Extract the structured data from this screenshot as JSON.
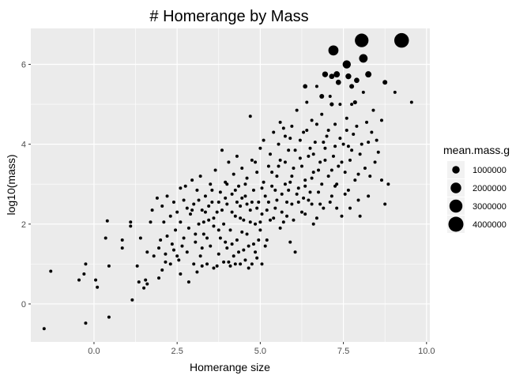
{
  "chart_data": {
    "type": "scatter",
    "title": "# Homerange by Mass",
    "xlabel": "Homerange size",
    "ylabel": "log10(mass)",
    "xlim": [
      -1.9,
      10.1
    ],
    "ylim": [
      -0.95,
      6.9
    ],
    "x_ticks": [
      0.0,
      2.5,
      5.0,
      7.5,
      10.0
    ],
    "x_tick_labels": [
      "0.0",
      "2.5",
      "5.0",
      "7.5",
      "10.0"
    ],
    "y_ticks": [
      0,
      2,
      4,
      6
    ],
    "y_tick_labels": [
      "0",
      "2",
      "4",
      "6"
    ],
    "grid": true,
    "background": "#ebebeb",
    "grid_color": "#ffffff",
    "point_color": "#000000",
    "legend": {
      "title": "mean.mass.g",
      "placement": "right",
      "entries": [
        {
          "label": "1000000",
          "value": 1000000
        },
        {
          "label": "2000000",
          "value": 2000000
        },
        {
          "label": "3000000",
          "value": 3000000
        },
        {
          "label": "4000000",
          "value": 4000000
        }
      ]
    },
    "points": [
      [
        -1.5,
        -0.62
      ],
      [
        -1.3,
        0.82
      ],
      [
        -0.45,
        0.6
      ],
      [
        -0.25,
        1.0
      ],
      [
        -0.3,
        0.75
      ],
      [
        -0.25,
        -0.48
      ],
      [
        0.05,
        0.6
      ],
      [
        0.1,
        0.42
      ],
      [
        0.35,
        1.65
      ],
      [
        0.4,
        2.08
      ],
      [
        0.45,
        0.95
      ],
      [
        0.45,
        -0.33
      ],
      [
        0.85,
        1.6
      ],
      [
        0.85,
        1.4
      ],
      [
        1.1,
        2.05
      ],
      [
        1.1,
        1.95
      ],
      [
        1.15,
        0.1
      ],
      [
        1.3,
        0.95
      ],
      [
        1.35,
        0.55
      ],
      [
        1.4,
        1.65
      ],
      [
        1.5,
        0.4
      ],
      [
        1.55,
        0.6
      ],
      [
        1.6,
        0.5
      ],
      [
        1.6,
        1.3
      ],
      [
        1.7,
        2.05
      ],
      [
        1.75,
        2.35
      ],
      [
        1.8,
        1.2
      ],
      [
        1.9,
        2.65
      ],
      [
        1.95,
        0.65
      ],
      [
        2.0,
        1.6
      ],
      [
        2.05,
        2.45
      ],
      [
        2.05,
        0.85
      ],
      [
        2.1,
        2.05
      ],
      [
        2.15,
        1.05
      ],
      [
        2.2,
        1.7
      ],
      [
        2.2,
        2.7
      ],
      [
        2.3,
        1.0
      ],
      [
        2.3,
        2.2
      ],
      [
        2.35,
        1.5
      ],
      [
        2.4,
        2.55
      ],
      [
        2.45,
        1.85
      ],
      [
        2.5,
        1.2
      ],
      [
        2.5,
        2.3
      ],
      [
        2.6,
        2.9
      ],
      [
        2.6,
        0.75
      ],
      [
        2.7,
        1.65
      ],
      [
        2.7,
        2.6
      ],
      [
        2.75,
        2.95
      ],
      [
        2.8,
        1.3
      ],
      [
        2.85,
        0.55
      ],
      [
        2.85,
        1.9
      ],
      [
        2.9,
        2.25
      ],
      [
        2.95,
        3.1
      ],
      [
        3.0,
        1.0
      ],
      [
        3.0,
        2.5
      ],
      [
        3.05,
        1.55
      ],
      [
        3.1,
        2.85
      ],
      [
        3.15,
        2.0
      ],
      [
        3.2,
        1.2
      ],
      [
        3.2,
        3.2
      ],
      [
        3.25,
        2.35
      ],
      [
        3.3,
        1.75
      ],
      [
        3.35,
        2.7
      ],
      [
        3.4,
        1.0
      ],
      [
        3.45,
        2.1
      ],
      [
        3.5,
        3.0
      ],
      [
        3.5,
        1.45
      ],
      [
        3.55,
        2.55
      ],
      [
        3.6,
        1.95
      ],
      [
        3.6,
        0.9
      ],
      [
        3.65,
        3.35
      ],
      [
        3.7,
        2.3
      ],
      [
        3.75,
        1.25
      ],
      [
        3.8,
        2.8
      ],
      [
        3.8,
        1.65
      ],
      [
        3.85,
        3.85
      ],
      [
        3.9,
        2.0
      ],
      [
        3.9,
        1.05
      ],
      [
        3.95,
        3.05
      ],
      [
        4.0,
        2.5
      ],
      [
        4.0,
        1.4
      ],
      [
        4.05,
        3.55
      ],
      [
        4.1,
        1.85
      ],
      [
        4.1,
        0.95
      ],
      [
        4.15,
        2.75
      ],
      [
        4.2,
        3.25
      ],
      [
        4.2,
        1.2
      ],
      [
        4.25,
        2.2
      ],
      [
        4.3,
        1.6
      ],
      [
        4.3,
        3.7
      ],
      [
        4.35,
        2.95
      ],
      [
        4.4,
        1.0
      ],
      [
        4.4,
        2.45
      ],
      [
        4.45,
        3.4
      ],
      [
        4.5,
        1.35
      ],
      [
        4.5,
        2.1
      ],
      [
        4.55,
        2.7
      ],
      [
        4.6,
        1.75
      ],
      [
        4.6,
        3.15
      ],
      [
        4.65,
        0.9
      ],
      [
        4.7,
        2.35
      ],
      [
        4.7,
        4.7
      ],
      [
        4.75,
        3.6
      ],
      [
        4.8,
        1.5
      ],
      [
        4.8,
        2.85
      ],
      [
        4.85,
        2.0
      ],
      [
        4.9,
        3.3
      ],
      [
        4.9,
        1.15
      ],
      [
        4.95,
        2.55
      ],
      [
        5.0,
        3.9
      ],
      [
        5.0,
        1.85
      ],
      [
        5.05,
        2.25
      ],
      [
        5.1,
        3.05
      ],
      [
        5.1,
        4.1
      ],
      [
        5.15,
        2.7
      ],
      [
        5.2,
        1.6
      ],
      [
        5.25,
        3.45
      ],
      [
        5.3,
        2.1
      ],
      [
        5.3,
        3.75
      ],
      [
        5.35,
        2.95
      ],
      [
        5.4,
        4.3
      ],
      [
        5.45,
        2.4
      ],
      [
        5.5,
        3.2
      ],
      [
        5.55,
        4.0
      ],
      [
        5.6,
        1.9
      ],
      [
        5.6,
        3.6
      ],
      [
        5.65,
        2.75
      ],
      [
        5.7,
        4.4
      ],
      [
        5.75,
        3.0
      ],
      [
        5.8,
        2.2
      ],
      [
        5.85,
        3.85
      ],
      [
        5.9,
        1.55
      ],
      [
        5.9,
        4.15
      ],
      [
        5.95,
        2.5
      ],
      [
        6.0,
        3.4
      ],
      [
        6.05,
        1.3
      ],
      [
        6.1,
        4.85
      ],
      [
        6.15,
        2.9
      ],
      [
        6.2,
        3.65
      ],
      [
        6.25,
        2.3
      ],
      [
        6.3,
        4.3
      ],
      [
        6.35,
        3.1
      ],
      [
        6.4,
        5.05
      ],
      [
        6.45,
        2.6
      ],
      [
        6.5,
        3.9
      ],
      [
        6.55,
        4.6
      ],
      [
        6.6,
        2.0
      ],
      [
        6.6,
        3.3
      ],
      [
        6.65,
        4.05
      ],
      [
        6.7,
        5.45
      ],
      [
        6.75,
        2.8
      ],
      [
        6.8,
        3.55
      ],
      [
        6.85,
        4.75
      ],
      [
        6.9,
        2.4
      ],
      [
        6.95,
        3.9
      ],
      [
        7.0,
        4.2
      ],
      [
        7.05,
        3.2
      ],
      [
        7.1,
        5.2
      ],
      [
        7.15,
        2.7
      ],
      [
        7.2,
        3.7
      ],
      [
        7.25,
        4.5
      ],
      [
        7.3,
        3.0
      ],
      [
        7.35,
        3.45
      ],
      [
        7.4,
        5.0
      ],
      [
        7.45,
        2.2
      ],
      [
        7.5,
        4.0
      ],
      [
        7.55,
        3.3
      ],
      [
        7.6,
        4.65
      ],
      [
        7.65,
        2.85
      ],
      [
        7.7,
        3.6
      ],
      [
        7.75,
        5.0
      ],
      [
        7.8,
        4.25
      ],
      [
        7.85,
        3.1
      ],
      [
        7.9,
        4.45
      ],
      [
        7.95,
        2.6
      ],
      [
        8.0,
        3.75
      ],
      [
        8.05,
        4.0
      ],
      [
        8.1,
        5.3
      ],
      [
        8.15,
        3.4
      ],
      [
        8.2,
        4.55
      ],
      [
        8.25,
        2.7
      ],
      [
        8.3,
        3.2
      ],
      [
        8.35,
        4.3
      ],
      [
        8.4,
        4.85
      ],
      [
        8.5,
        4.1
      ],
      [
        8.55,
        3.8
      ],
      [
        8.65,
        4.6
      ],
      [
        8.75,
        2.5
      ],
      [
        8.85,
        3.0
      ],
      [
        9.05,
        5.3
      ],
      [
        9.55,
        5.05
      ],
      [
        2.55,
        1.1
      ],
      [
        2.65,
        1.45
      ],
      [
        3.1,
        0.8
      ],
      [
        3.25,
        1.4
      ],
      [
        3.4,
        1.65
      ],
      [
        3.7,
        0.95
      ],
      [
        3.75,
        1.85
      ],
      [
        3.95,
        1.55
      ],
      [
        4.05,
        1.05
      ],
      [
        4.15,
        1.5
      ],
      [
        4.25,
        1.0
      ],
      [
        4.35,
        1.3
      ],
      [
        4.45,
        1.8
      ],
      [
        4.55,
        1.1
      ],
      [
        4.65,
        1.45
      ],
      [
        4.75,
        1.0
      ],
      [
        4.85,
        1.3
      ],
      [
        4.95,
        1.6
      ],
      [
        5.05,
        1.0
      ],
      [
        5.15,
        1.45
      ],
      [
        4.0,
        3.0
      ],
      [
        4.25,
        2.85
      ],
      [
        4.45,
        2.65
      ],
      [
        4.55,
        3.0
      ],
      [
        4.75,
        2.55
      ],
      [
        4.85,
        3.55
      ],
      [
        5.05,
        2.9
      ],
      [
        5.25,
        2.55
      ],
      [
        5.35,
        3.3
      ],
      [
        5.45,
        2.85
      ],
      [
        5.55,
        3.45
      ],
      [
        5.65,
        2.3
      ],
      [
        5.75,
        3.55
      ],
      [
        5.85,
        2.85
      ],
      [
        5.95,
        3.2
      ],
      [
        6.25,
        3.45
      ],
      [
        6.35,
        2.95
      ],
      [
        6.45,
        3.7
      ],
      [
        6.55,
        3.15
      ],
      [
        6.75,
        3.35
      ],
      [
        6.85,
        3.0
      ],
      [
        6.95,
        3.6
      ],
      [
        7.15,
        3.35
      ],
      [
        7.25,
        2.95
      ],
      [
        7.45,
        3.55
      ],
      [
        7.55,
        2.75
      ],
      [
        7.65,
        3.95
      ],
      [
        7.95,
        3.25
      ],
      [
        8.45,
        3.55
      ],
      [
        8.65,
        3.1
      ],
      [
        3.3,
        2.05
      ],
      [
        3.45,
        2.45
      ],
      [
        3.6,
        2.15
      ],
      [
        3.85,
        2.35
      ],
      [
        3.95,
        2.65
      ],
      [
        4.15,
        2.3
      ],
      [
        4.3,
        2.55
      ],
      [
        4.4,
        2.15
      ],
      [
        4.6,
        2.5
      ],
      [
        4.7,
        2.05
      ],
      [
        4.9,
        2.4
      ],
      [
        5.0,
        2.05
      ],
      [
        5.2,
        2.35
      ],
      [
        5.4,
        2.15
      ],
      [
        5.5,
        2.6
      ],
      [
        5.7,
        2.05
      ],
      [
        5.8,
        2.55
      ],
      [
        6.0,
        2.1
      ],
      [
        6.15,
        2.55
      ],
      [
        6.35,
        2.25
      ],
      [
        6.55,
        2.5
      ],
      [
        6.7,
        2.15
      ],
      [
        2.95,
        2.35
      ],
      [
        3.15,
        2.6
      ],
      [
        3.35,
        2.3
      ],
      [
        3.55,
        2.85
      ],
      [
        3.75,
        2.55
      ],
      [
        1.95,
        1.4
      ],
      [
        2.15,
        1.25
      ],
      [
        2.4,
        1.35
      ],
      [
        2.6,
        2.05
      ],
      [
        2.8,
        2.4
      ],
      [
        3.05,
        1.75
      ],
      [
        3.25,
        0.95
      ],
      [
        5.6,
        4.55
      ],
      [
        5.75,
        4.2
      ],
      [
        5.95,
        4.45
      ],
      [
        6.05,
        3.85
      ],
      [
        6.2,
        4.1
      ],
      [
        6.4,
        4.35
      ],
      [
        6.6,
        3.75
      ],
      [
        6.7,
        4.5
      ],
      [
        6.9,
        4.05
      ],
      [
        7.05,
        4.35
      ],
      [
        7.25,
        3.95
      ],
      [
        7.4,
        4.15
      ],
      [
        7.6,
        4.35
      ],
      [
        7.75,
        3.85
      ],
      [
        8.25,
        4.05
      ],
      [
        5.9,
        3.05
      ],
      [
        6.1,
        2.75
      ],
      [
        6.3,
        2.65
      ],
      [
        6.5,
        2.8
      ],
      [
        6.8,
        2.5
      ],
      [
        7.1,
        2.55
      ],
      [
        7.3,
        2.4
      ],
      [
        7.7,
        2.4
      ],
      [
        8.0,
        2.2
      ]
    ],
    "big_points": [
      {
        "x": 6.95,
        "y": 5.75,
        "mass": 600000
      },
      {
        "x": 7.3,
        "y": 5.75,
        "mass": 700000
      },
      {
        "x": 7.35,
        "y": 5.55,
        "mass": 500000
      },
      {
        "x": 7.15,
        "y": 5.0,
        "mass": 300000
      },
      {
        "x": 7.15,
        "y": 5.7,
        "mass": 500000
      },
      {
        "x": 7.65,
        "y": 5.7,
        "mass": 600000
      },
      {
        "x": 7.75,
        "y": 5.45,
        "mass": 400000
      },
      {
        "x": 7.9,
        "y": 5.6,
        "mass": 500000
      },
      {
        "x": 8.25,
        "y": 5.75,
        "mass": 700000
      },
      {
        "x": 6.85,
        "y": 5.2,
        "mass": 400000
      },
      {
        "x": 7.2,
        "y": 6.35,
        "mass": 1800000
      },
      {
        "x": 7.6,
        "y": 6.0,
        "mass": 1200000
      },
      {
        "x": 8.05,
        "y": 6.6,
        "mass": 3300000
      },
      {
        "x": 8.1,
        "y": 6.15,
        "mass": 1300000
      },
      {
        "x": 9.25,
        "y": 6.6,
        "mass": 3800000
      },
      {
        "x": 6.35,
        "y": 5.45,
        "mass": 350000
      },
      {
        "x": 7.85,
        "y": 5.05,
        "mass": 300000
      },
      {
        "x": 8.75,
        "y": 5.55,
        "mass": 400000
      }
    ]
  }
}
